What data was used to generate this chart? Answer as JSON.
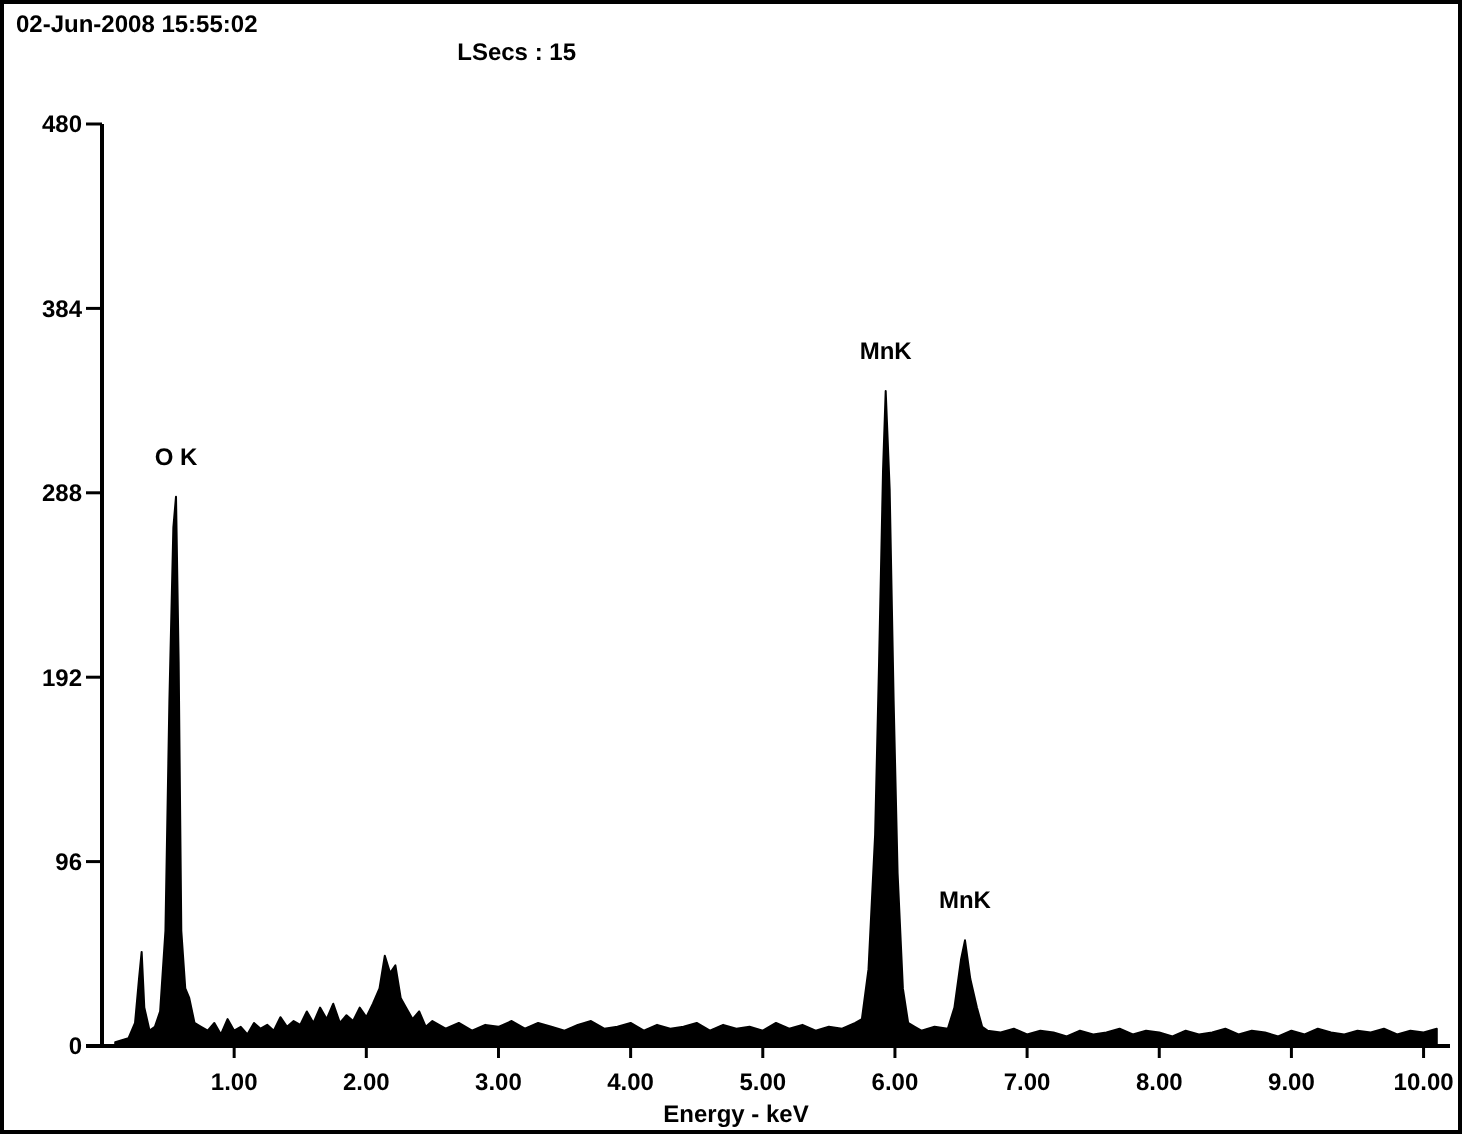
{
  "chart_data": {
    "type": "area",
    "title": "02-Jun-2008 15:55:02",
    "subtitle": "LSecs : 15",
    "xlabel": "Energy - keV",
    "x": [
      0.1,
      0.15,
      0.2,
      0.25,
      0.28,
      0.3,
      0.32,
      0.36,
      0.4,
      0.44,
      0.48,
      0.51,
      0.54,
      0.56,
      0.58,
      0.6,
      0.63,
      0.66,
      0.7,
      0.75,
      0.8,
      0.85,
      0.9,
      0.95,
      1.0,
      1.05,
      1.1,
      1.15,
      1.2,
      1.25,
      1.3,
      1.35,
      1.4,
      1.45,
      1.5,
      1.55,
      1.6,
      1.65,
      1.7,
      1.75,
      1.8,
      1.85,
      1.9,
      1.95,
      2.0,
      2.05,
      2.1,
      2.14,
      2.18,
      2.22,
      2.26,
      2.3,
      2.35,
      2.4,
      2.45,
      2.5,
      2.6,
      2.7,
      2.8,
      2.9,
      3.0,
      3.1,
      3.2,
      3.3,
      3.4,
      3.5,
      3.6,
      3.7,
      3.8,
      3.9,
      4.0,
      4.1,
      4.2,
      4.3,
      4.4,
      4.5,
      4.6,
      4.7,
      4.8,
      4.9,
      5.0,
      5.1,
      5.2,
      5.3,
      5.4,
      5.5,
      5.6,
      5.7,
      5.75,
      5.8,
      5.85,
      5.88,
      5.91,
      5.93,
      5.96,
      5.99,
      6.02,
      6.06,
      6.1,
      6.15,
      6.2,
      6.3,
      6.4,
      6.45,
      6.5,
      6.53,
      6.57,
      6.62,
      6.66,
      6.7,
      6.8,
      6.9,
      7.0,
      7.1,
      7.2,
      7.3,
      7.4,
      7.5,
      7.6,
      7.7,
      7.8,
      7.9,
      8.0,
      8.1,
      8.2,
      8.3,
      8.4,
      8.5,
      8.6,
      8.7,
      8.8,
      8.9,
      9.0,
      9.1,
      9.2,
      9.3,
      9.4,
      9.5,
      9.6,
      9.7,
      9.8,
      9.9,
      10.0,
      10.1
    ],
    "series": [
      {
        "color": "#000000",
        "values": [
          2,
          3,
          4,
          12,
          35,
          49,
          20,
          8,
          10,
          18,
          60,
          180,
          270,
          286,
          200,
          60,
          30,
          25,
          12,
          10,
          8,
          12,
          6,
          14,
          8,
          10,
          6,
          12,
          9,
          11,
          8,
          15,
          10,
          13,
          11,
          18,
          12,
          20,
          14,
          22,
          12,
          16,
          13,
          20,
          15,
          22,
          30,
          47,
          38,
          42,
          25,
          20,
          14,
          18,
          10,
          13,
          9,
          12,
          8,
          11,
          10,
          13,
          9,
          12,
          10,
          8,
          11,
          13,
          9,
          10,
          12,
          8,
          11,
          9,
          10,
          12,
          8,
          11,
          9,
          10,
          8,
          12,
          9,
          11,
          8,
          10,
          9,
          12,
          14,
          40,
          110,
          200,
          300,
          341,
          290,
          180,
          90,
          30,
          12,
          10,
          8,
          10,
          9,
          20,
          45,
          55,
          35,
          20,
          10,
          8,
          7,
          9,
          6,
          8,
          7,
          5,
          8,
          6,
          7,
          9,
          6,
          8,
          7,
          5,
          8,
          6,
          7,
          9,
          6,
          8,
          7,
          5,
          8,
          6,
          9,
          7,
          6,
          8,
          7,
          9,
          6,
          8,
          7,
          9
        ]
      }
    ],
    "xlim": [
      0,
      10.2
    ],
    "ylim": [
      0,
      480
    ],
    "xticks": [
      {
        "value": 1,
        "label": "1.00"
      },
      {
        "value": 2,
        "label": "2.00"
      },
      {
        "value": 3,
        "label": "3.00"
      },
      {
        "value": 4,
        "label": "4.00"
      },
      {
        "value": 5,
        "label": "5.00"
      },
      {
        "value": 6,
        "label": "6.00"
      },
      {
        "value": 7,
        "label": "7.00"
      },
      {
        "value": 8,
        "label": "8.00"
      },
      {
        "value": 9,
        "label": "9.00"
      },
      {
        "value": 10,
        "label": "10.00"
      }
    ],
    "yticks": [
      0,
      96,
      192,
      288,
      384,
      480
    ],
    "annotations": [
      {
        "text": "O K",
        "x": 0.56,
        "y": 286
      },
      {
        "text": "MnK",
        "x": 5.93,
        "y": 341
      },
      {
        "text": "MnK",
        "x": 6.53,
        "y": 55
      }
    ]
  }
}
